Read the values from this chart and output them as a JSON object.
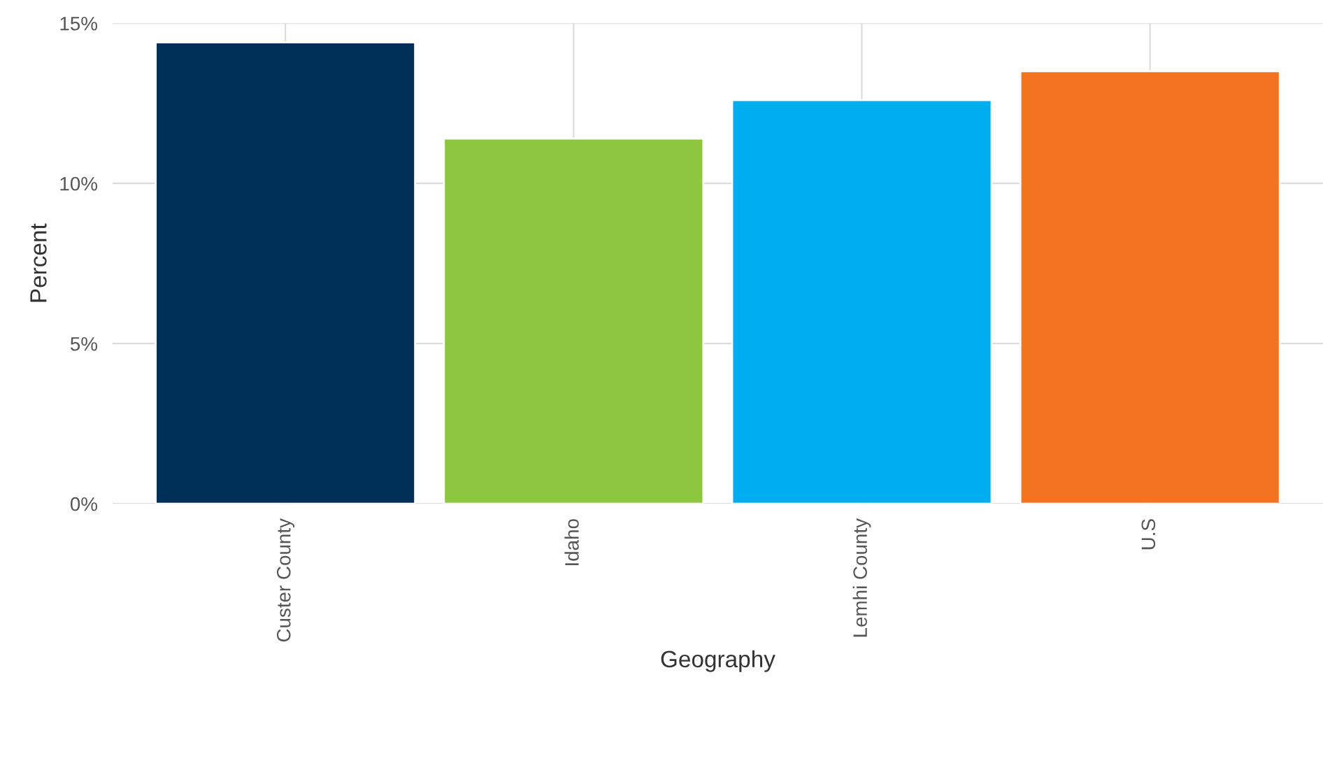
{
  "chart_data": {
    "type": "bar",
    "xlabel": "Geography",
    "ylabel": "Percent",
    "categories": [
      "Custer County",
      "Idaho",
      "Lemhi County",
      "U.S"
    ],
    "values": [
      14.4,
      11.4,
      12.6,
      13.5
    ],
    "colors": [
      "#003057",
      "#8dc63f",
      "#00aeef",
      "#f47321"
    ],
    "ylim": [
      0,
      15
    ],
    "yticks": [
      {
        "value": 0,
        "label": "0%"
      },
      {
        "value": 5,
        "label": "5%"
      },
      {
        "value": 10,
        "label": "10%"
      },
      {
        "value": 15,
        "label": "15%"
      }
    ],
    "grid": true,
    "legend": false
  }
}
